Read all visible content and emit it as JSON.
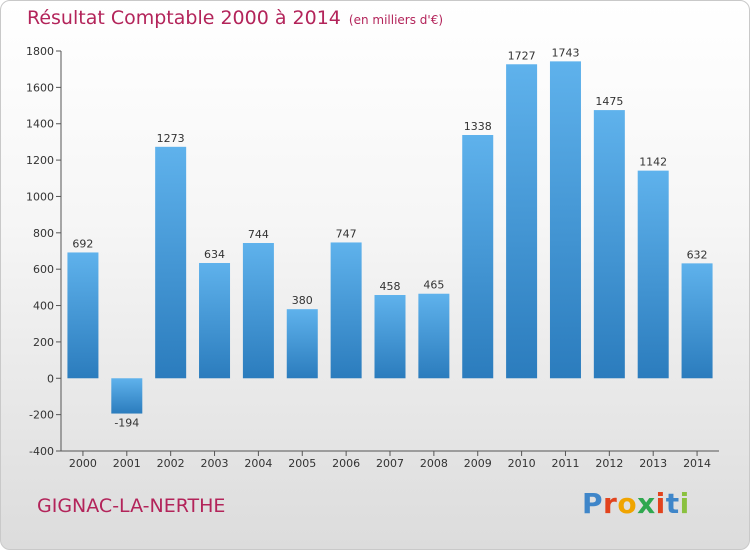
{
  "title": "Résultat Comptable 2000 à 2014",
  "subtitle": "(en milliers d'€)",
  "commune": "GIGNAC-LA-NERTHE",
  "logo": "Proxiti",
  "colors": {
    "title": "#b3245a",
    "bar_light": "#5fb2ec",
    "bar_dark": "#2b7cbd",
    "axis": "#555555",
    "label": "#333333"
  },
  "chart_data": {
    "type": "bar",
    "title": "Résultat Comptable 2000 à 2014",
    "subtitle": "(en milliers d'€)",
    "xlabel": "",
    "ylabel": "",
    "categories": [
      "2000",
      "2001",
      "2002",
      "2003",
      "2004",
      "2005",
      "2006",
      "2007",
      "2008",
      "2009",
      "2010",
      "2011",
      "2012",
      "2013",
      "2014"
    ],
    "values": [
      692,
      -194,
      1273,
      634,
      744,
      380,
      747,
      458,
      465,
      1338,
      1727,
      1743,
      1475,
      1142,
      632
    ],
    "data_labels": [
      "692",
      "-194",
      "1273",
      "634",
      "744",
      "380",
      "747",
      "458",
      "465",
      "1338",
      "1727",
      "1743",
      "1475",
      "1142",
      "632"
    ],
    "ylim": [
      -400,
      1800
    ],
    "yticks": [
      -400,
      -200,
      0,
      200,
      400,
      600,
      800,
      1000,
      1200,
      1400,
      1600,
      1800
    ],
    "ytick_labels": [
      "-400",
      "-200",
      "0",
      "200",
      "400",
      "600",
      "800",
      "1000",
      "1200",
      "1400",
      "1600",
      "1800"
    ],
    "grid": false,
    "legend": "none"
  }
}
